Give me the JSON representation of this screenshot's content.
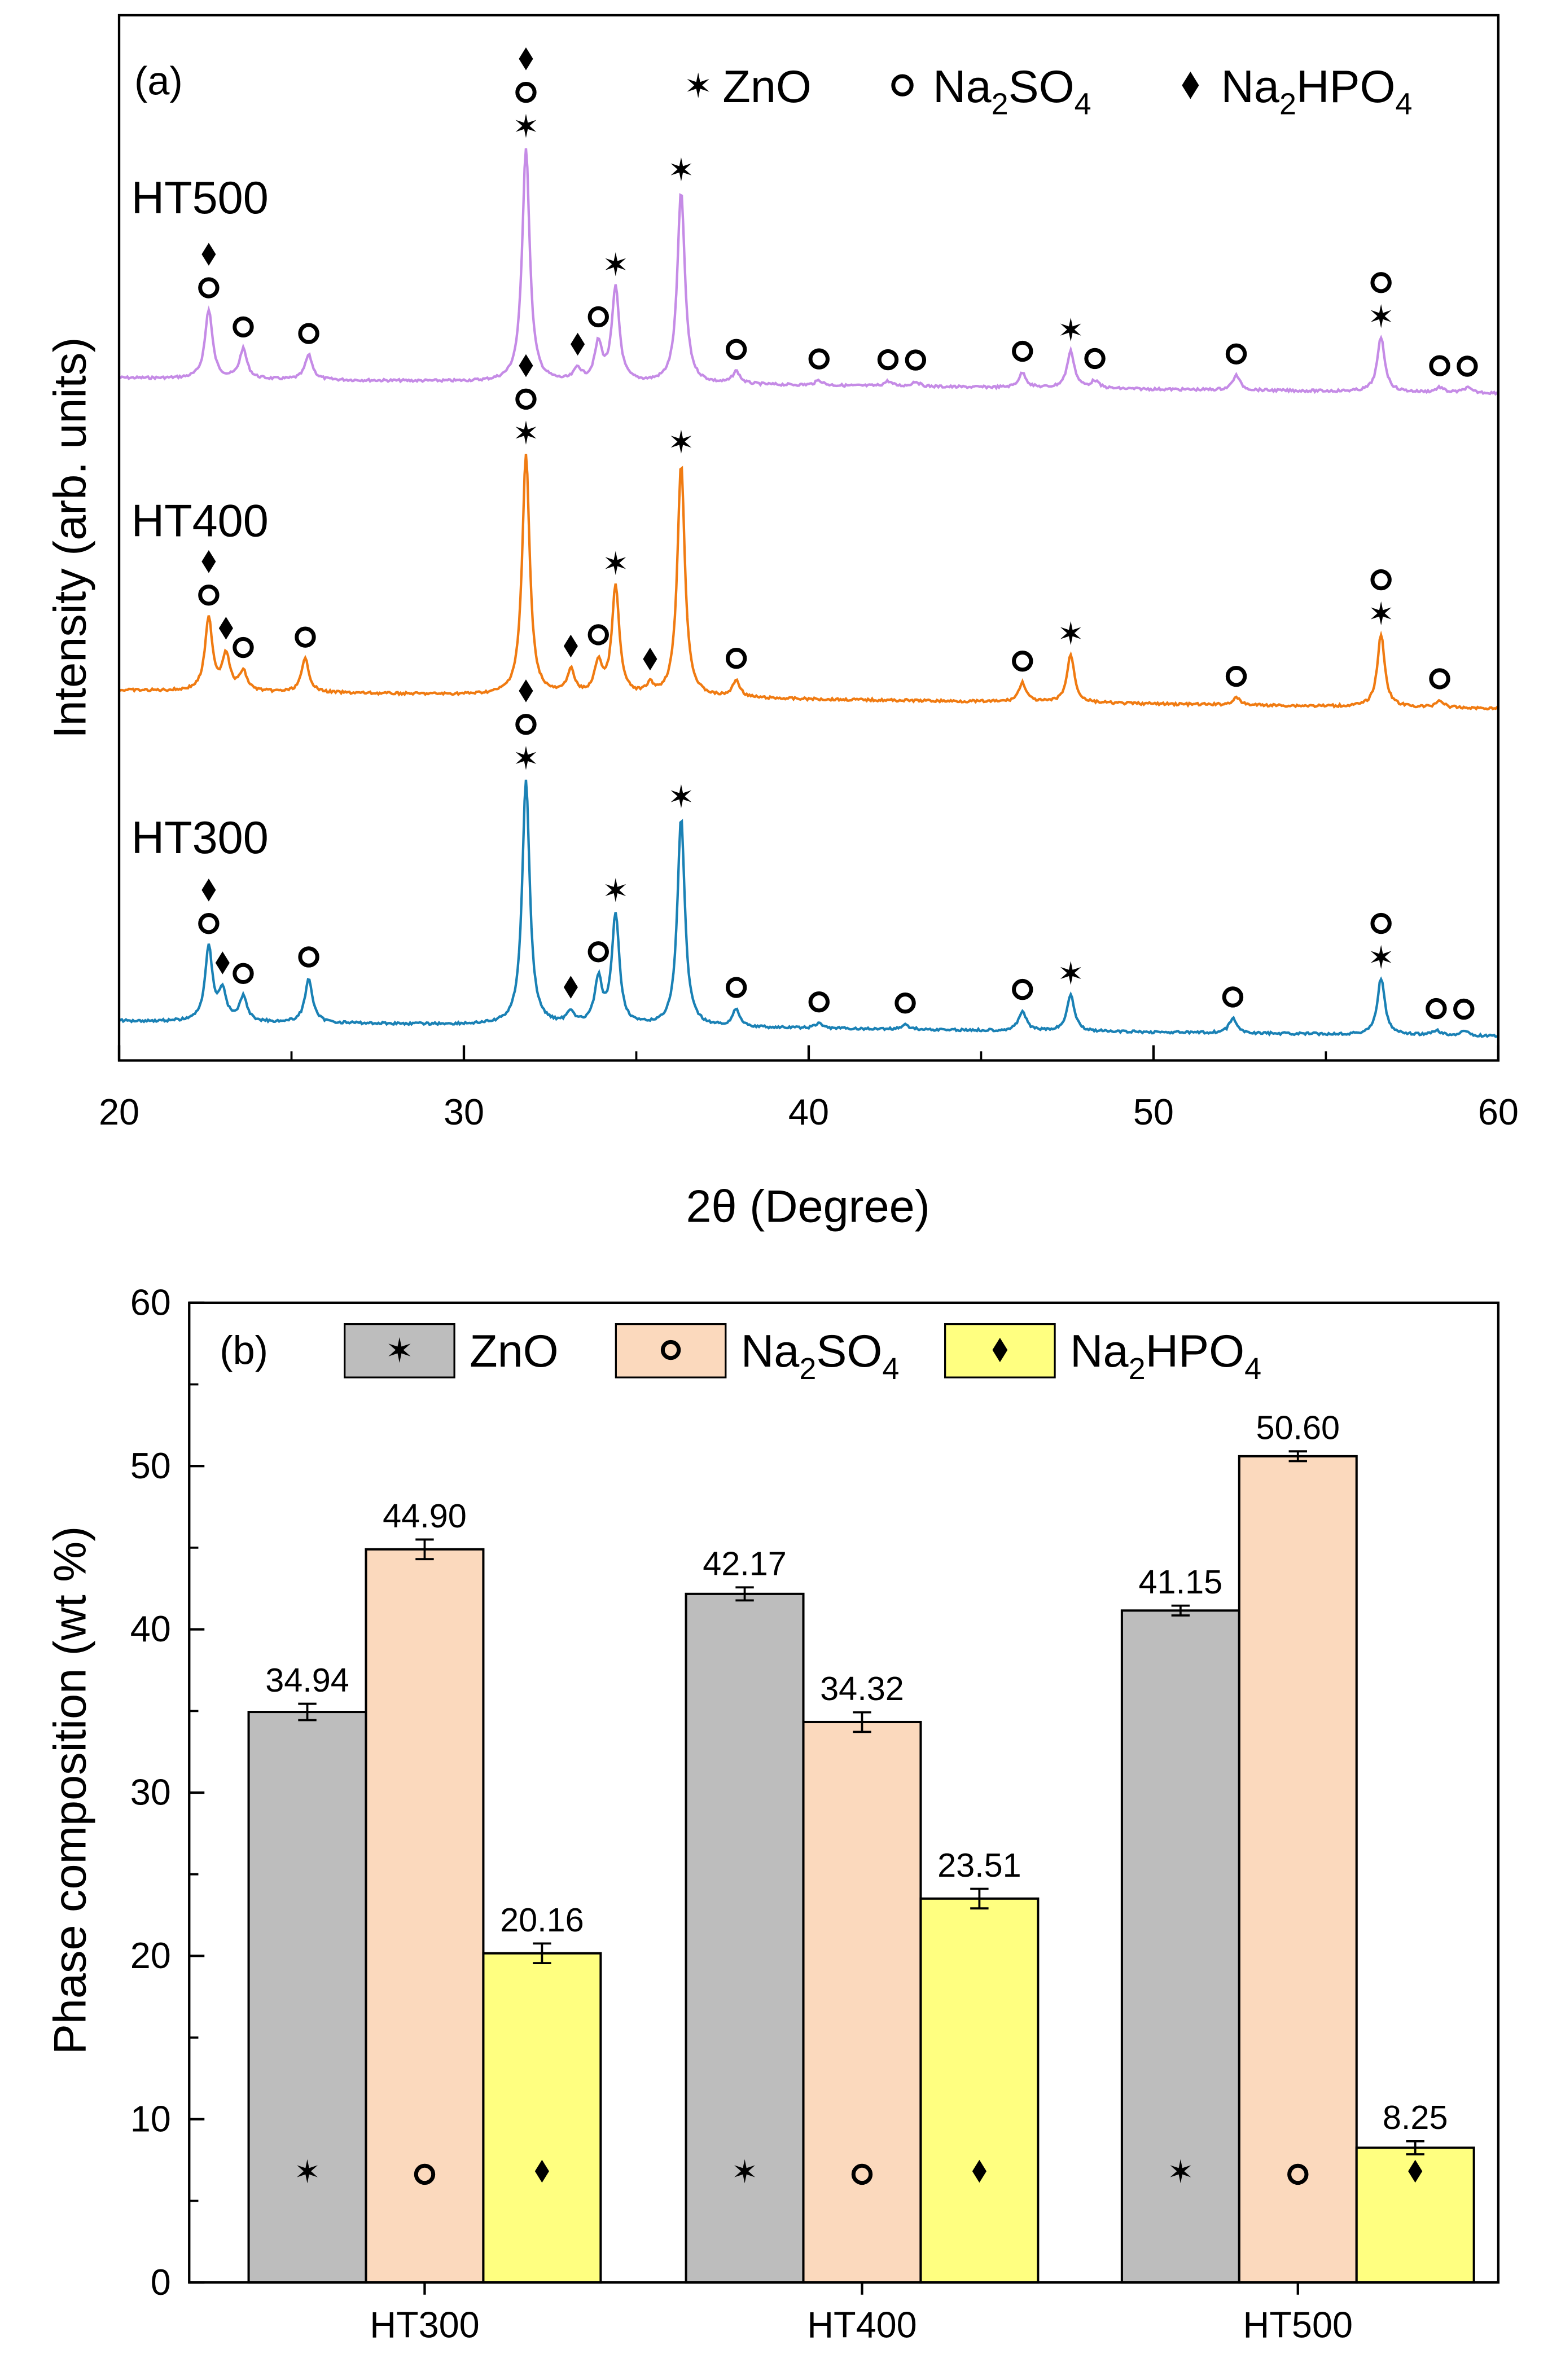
{
  "figure": {
    "colors": {
      "HT300": "#1a81b5",
      "HT400": "#f07b12",
      "HT500": "#c58be6",
      "zno_bar": "#bdbdbd",
      "na2so4_bar": "#fbd9bd",
      "na2hpo4_bar": "#ffff80"
    }
  },
  "chart_data": [
    {
      "type": "line",
      "panel_label": "(a)",
      "xlabel": "2θ (Degree)",
      "ylabel": "Intensity (arb. units)",
      "xlim": [
        20,
        60
      ],
      "xticks": [
        "20",
        "30",
        "40",
        "50",
        "60"
      ],
      "legend": [
        {
          "symbol": "star",
          "label": "ZnO",
          "label_parts": [
            "ZnO"
          ]
        },
        {
          "symbol": "circle",
          "label": "Na2SO4",
          "label_parts": [
            "Na",
            "2",
            "SO",
            "4"
          ]
        },
        {
          "symbol": "diamond",
          "label": "Na2HPO4",
          "label_parts": [
            "Na",
            "2",
            "HPO",
            "4"
          ]
        }
      ],
      "series": [
        {
          "name": "HT500",
          "label": "HT500",
          "color": "#c58be6",
          "peaks": [
            [
              22.6,
              0.28
            ],
            [
              23.6,
              0.12
            ],
            [
              25.5,
              0.1
            ],
            [
              31.8,
              0.95
            ],
            [
              33.3,
              0.05
            ],
            [
              33.9,
              0.15
            ],
            [
              34.4,
              0.38
            ],
            [
              36.3,
              0.78
            ],
            [
              37.9,
              0.05
            ],
            [
              40.3,
              0.02
            ],
            [
              42.3,
              0.02
            ],
            [
              43.1,
              0.02
            ],
            [
              46.2,
              0.06
            ],
            [
              47.6,
              0.15
            ],
            [
              48.3,
              0.03
            ],
            [
              52.4,
              0.06
            ],
            [
              56.6,
              0.22
            ],
            [
              58.3,
              0.02
            ],
            [
              59.1,
              0.02
            ]
          ],
          "markers": [
            {
              "x": 22.6,
              "symbols": [
                "circle",
                "diamond"
              ]
            },
            {
              "x": 23.6,
              "symbols": [
                "circle"
              ]
            },
            {
              "x": 25.5,
              "symbols": [
                "circle"
              ]
            },
            {
              "x": 31.8,
              "symbols": [
                "star",
                "circle",
                "diamond"
              ]
            },
            {
              "x": 33.3,
              "symbols": [
                "diamond"
              ]
            },
            {
              "x": 33.9,
              "symbols": [
                "circle"
              ]
            },
            {
              "x": 34.4,
              "symbols": [
                "star"
              ]
            },
            {
              "x": 36.3,
              "symbols": [
                "star"
              ]
            },
            {
              "x": 37.9,
              "symbols": [
                "circle"
              ]
            },
            {
              "x": 40.3,
              "symbols": [
                "circle"
              ]
            },
            {
              "x": 42.3,
              "symbols": [
                "circle"
              ]
            },
            {
              "x": 43.1,
              "symbols": [
                "circle"
              ]
            },
            {
              "x": 46.2,
              "symbols": [
                "circle"
              ]
            },
            {
              "x": 47.6,
              "symbols": [
                "star"
              ]
            },
            {
              "x": 48.3,
              "symbols": [
                "circle"
              ]
            },
            {
              "x": 52.4,
              "symbols": [
                "circle"
              ]
            },
            {
              "x": 56.6,
              "symbols": [
                "star",
                "circle"
              ]
            },
            {
              "x": 58.3,
              "symbols": [
                "circle"
              ]
            },
            {
              "x": 59.1,
              "symbols": [
                "circle"
              ]
            }
          ]
        },
        {
          "name": "HT400",
          "label": "HT400",
          "color": "#f07b12",
          "peaks": [
            [
              22.6,
              0.3
            ],
            [
              23.1,
              0.15
            ],
            [
              23.6,
              0.08
            ],
            [
              25.4,
              0.14
            ],
            [
              31.8,
              1.0
            ],
            [
              33.1,
              0.1
            ],
            [
              33.9,
              0.13
            ],
            [
              34.4,
              0.45
            ],
            [
              35.4,
              0.04
            ],
            [
              36.3,
              0.97
            ],
            [
              37.9,
              0.07
            ],
            [
              46.2,
              0.08
            ],
            [
              47.6,
              0.2
            ],
            [
              52.4,
              0.03
            ],
            [
              56.6,
              0.3
            ],
            [
              58.3,
              0.03
            ]
          ],
          "markers": [
            {
              "x": 22.6,
              "symbols": [
                "circle",
                "diamond"
              ]
            },
            {
              "x": 23.1,
              "symbols": [
                "diamond"
              ]
            },
            {
              "x": 23.6,
              "symbols": [
                "circle"
              ]
            },
            {
              "x": 25.4,
              "symbols": [
                "circle"
              ]
            },
            {
              "x": 31.8,
              "symbols": [
                "star",
                "circle",
                "diamond"
              ]
            },
            {
              "x": 33.1,
              "symbols": [
                "diamond"
              ]
            },
            {
              "x": 33.9,
              "symbols": [
                "circle"
              ]
            },
            {
              "x": 34.4,
              "symbols": [
                "star"
              ]
            },
            {
              "x": 35.4,
              "symbols": [
                "diamond"
              ]
            },
            {
              "x": 36.3,
              "symbols": [
                "star"
              ]
            },
            {
              "x": 37.9,
              "symbols": [
                "circle"
              ]
            },
            {
              "x": 46.2,
              "symbols": [
                "circle"
              ]
            },
            {
              "x": 47.6,
              "symbols": [
                "star"
              ]
            },
            {
              "x": 52.4,
              "symbols": [
                "circle"
              ]
            },
            {
              "x": 56.6,
              "symbols": [
                "star",
                "circle"
              ]
            },
            {
              "x": 58.3,
              "symbols": [
                "circle"
              ]
            }
          ]
        },
        {
          "name": "HT300",
          "label": "HT300",
          "color": "#1a81b5",
          "peaks": [
            [
              22.6,
              0.3
            ],
            [
              23.0,
              0.12
            ],
            [
              23.6,
              0.1
            ],
            [
              25.5,
              0.18
            ],
            [
              31.8,
              1.0
            ],
            [
              33.1,
              0.05
            ],
            [
              33.9,
              0.18
            ],
            [
              34.4,
              0.45
            ],
            [
              36.3,
              0.85
            ],
            [
              37.9,
              0.07
            ],
            [
              40.3,
              0.02
            ],
            [
              42.8,
              0.02
            ],
            [
              46.2,
              0.08
            ],
            [
              47.6,
              0.15
            ],
            [
              52.3,
              0.06
            ],
            [
              56.6,
              0.23
            ],
            [
              58.2,
              0.02
            ],
            [
              59.0,
              0.02
            ]
          ],
          "markers": [
            {
              "x": 22.6,
              "symbols": [
                "circle",
                "diamond"
              ]
            },
            {
              "x": 23.0,
              "symbols": [
                "diamond"
              ]
            },
            {
              "x": 23.6,
              "symbols": [
                "circle"
              ]
            },
            {
              "x": 25.5,
              "symbols": [
                "circle"
              ]
            },
            {
              "x": 31.8,
              "symbols": [
                "star",
                "circle",
                "diamond"
              ]
            },
            {
              "x": 33.1,
              "symbols": [
                "diamond"
              ]
            },
            {
              "x": 33.9,
              "symbols": [
                "circle"
              ]
            },
            {
              "x": 34.4,
              "symbols": [
                "star"
              ]
            },
            {
              "x": 36.3,
              "symbols": [
                "star"
              ]
            },
            {
              "x": 37.9,
              "symbols": [
                "circle"
              ]
            },
            {
              "x": 40.3,
              "symbols": [
                "circle"
              ]
            },
            {
              "x": 42.8,
              "symbols": [
                "circle"
              ]
            },
            {
              "x": 46.2,
              "symbols": [
                "circle"
              ]
            },
            {
              "x": 47.6,
              "symbols": [
                "star"
              ]
            },
            {
              "x": 52.3,
              "symbols": [
                "circle"
              ]
            },
            {
              "x": 56.6,
              "symbols": [
                "star",
                "circle"
              ]
            },
            {
              "x": 58.2,
              "symbols": [
                "circle"
              ]
            },
            {
              "x": 59.0,
              "symbols": [
                "circle"
              ]
            }
          ]
        }
      ]
    },
    {
      "type": "bar",
      "panel_label": "(b)",
      "xlabel": "",
      "ylabel": "Phase composition (wt %)",
      "ylim": [
        0,
        60
      ],
      "yticks": [
        "0",
        "10",
        "20",
        "30",
        "40",
        "50",
        "60"
      ],
      "categories": [
        "HT300",
        "HT400",
        "HT500"
      ],
      "series": [
        {
          "name": "ZnO",
          "label_parts": [
            "ZnO"
          ],
          "symbol": "star",
          "color": "#bdbdbd",
          "values": [
            34.94,
            42.17,
            41.15
          ],
          "labels": [
            "34.94",
            "42.17",
            "41.15"
          ],
          "errors": [
            0.5,
            0.4,
            0.3
          ]
        },
        {
          "name": "Na2SO4",
          "label_parts": [
            "Na",
            "2",
            "SO",
            "4"
          ],
          "symbol": "circle",
          "color": "#fbd9bd",
          "values": [
            44.9,
            34.32,
            50.6
          ],
          "labels": [
            "44.90",
            "34.32",
            "50.60"
          ],
          "errors": [
            0.6,
            0.6,
            0.3
          ]
        },
        {
          "name": "Na2HPO4",
          "label_parts": [
            "Na",
            "2",
            "HPO",
            "4"
          ],
          "symbol": "diamond",
          "color": "#ffff80",
          "values": [
            20.16,
            23.51,
            8.25
          ],
          "labels": [
            "20.16",
            "23.51",
            "8.25"
          ],
          "errors": [
            0.6,
            0.6,
            0.4
          ]
        }
      ]
    }
  ]
}
